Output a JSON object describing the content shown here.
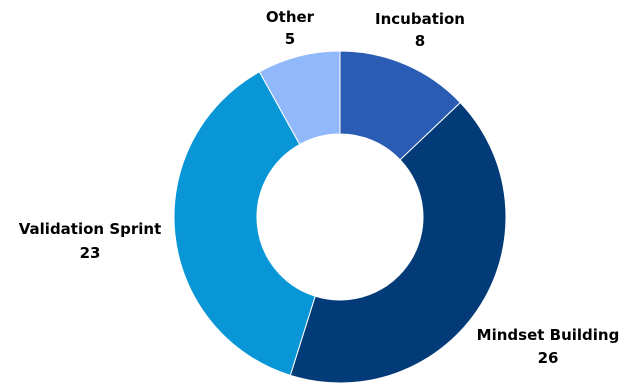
{
  "chart_data": {
    "type": "pie",
    "variant": "donut",
    "title": "",
    "slices": [
      {
        "label": "Incubation",
        "value": 8,
        "color": "#2A5CB3"
      },
      {
        "label": "Mindset Building",
        "value": 26,
        "color": "#033B78"
      },
      {
        "label": "Validation Sprint",
        "value": 23,
        "color": "#0896D6"
      },
      {
        "label": "Other",
        "value": 5,
        "color": "#92B8FC"
      }
    ],
    "start_angle": "12 o'clock",
    "direction": "clockwise",
    "legend": "none",
    "data_labels": "category name and value outside each slice"
  }
}
